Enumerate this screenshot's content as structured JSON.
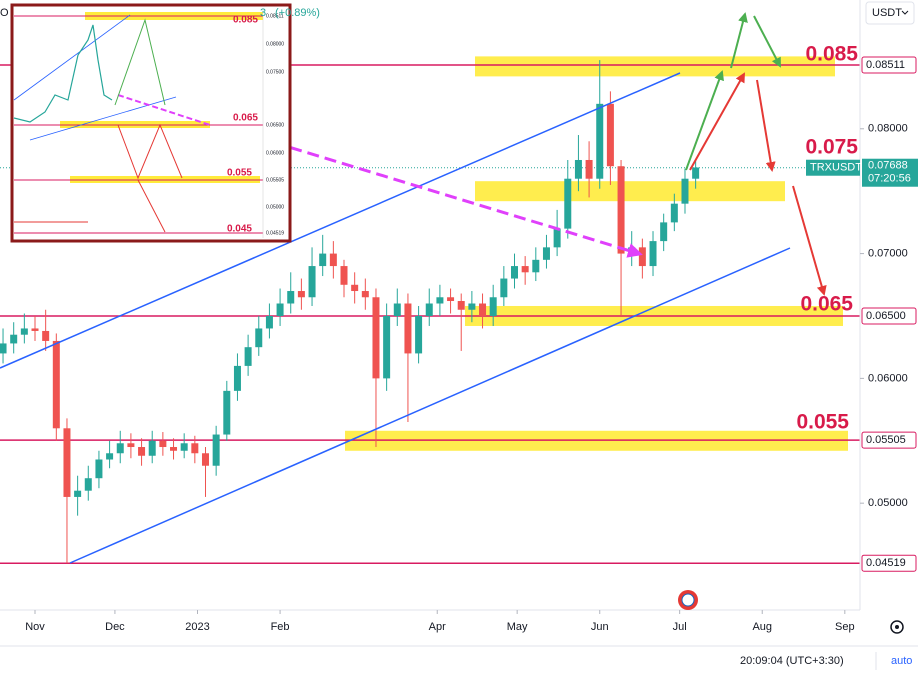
{
  "chart_data": {
    "type": "candlestick",
    "symbol": "TRXUSDT",
    "header_symbol_tail": "O",
    "header_change_tail": "3",
    "header_change": "(+0.89%)",
    "currency": "USDT",
    "x": [
      -12,
      -8,
      -4,
      0,
      4,
      8,
      12,
      16,
      20,
      24,
      28,
      32,
      36,
      40,
      44,
      48,
      52,
      56,
      60,
      64,
      68,
      72,
      76,
      80,
      84,
      88,
      92,
      96,
      100,
      104,
      108,
      112,
      116,
      120,
      124,
      128,
      132,
      136,
      140,
      144,
      148,
      152,
      156,
      160,
      164,
      168,
      172,
      176,
      180,
      184,
      188,
      192,
      196,
      200,
      204,
      208,
      212,
      216,
      220,
      224,
      228,
      232,
      236,
      240,
      244,
      248
    ],
    "open": [
      0.062,
      0.0628,
      0.0635,
      0.064,
      0.0638,
      0.063,
      0.056,
      0.0505,
      0.051,
      0.052,
      0.0535,
      0.054,
      0.0548,
      0.0545,
      0.0538,
      0.055,
      0.0545,
      0.0542,
      0.0548,
      0.054,
      0.053,
      0.0555,
      0.059,
      0.061,
      0.0625,
      0.064,
      0.065,
      0.066,
      0.067,
      0.0665,
      0.069,
      0.07,
      0.069,
      0.0675,
      0.067,
      0.0665,
      0.06,
      0.065,
      0.066,
      0.062,
      0.065,
      0.066,
      0.0665,
      0.0662,
      0.0655,
      0.066,
      0.065,
      0.0665,
      0.068,
      0.069,
      0.0685,
      0.0695,
      0.0705,
      0.072,
      0.076,
      0.0775,
      0.076,
      0.082,
      0.077,
      0.07,
      0.0705,
      0.069,
      0.071,
      0.0725,
      0.074,
      0.076
    ],
    "high": [
      0.064,
      0.0645,
      0.0652,
      0.065,
      0.0655,
      0.0636,
      0.0568,
      0.0522,
      0.053,
      0.0542,
      0.055,
      0.0558,
      0.0556,
      0.0552,
      0.0558,
      0.0557,
      0.0552,
      0.0556,
      0.0554,
      0.0545,
      0.0562,
      0.0598,
      0.062,
      0.0635,
      0.065,
      0.066,
      0.0672,
      0.0685,
      0.068,
      0.0705,
      0.0715,
      0.071,
      0.0695,
      0.0685,
      0.068,
      0.0672,
      0.066,
      0.0672,
      0.0668,
      0.0658,
      0.0672,
      0.0675,
      0.0672,
      0.0668,
      0.067,
      0.0668,
      0.0675,
      0.069,
      0.07,
      0.0698,
      0.0705,
      0.0715,
      0.0735,
      0.0775,
      0.0795,
      0.079,
      0.0855,
      0.083,
      0.0775,
      0.0718,
      0.0712,
      0.0718,
      0.0732,
      0.0748,
      0.0768,
      0.0775
    ],
    "low": [
      0.0612,
      0.062,
      0.0628,
      0.063,
      0.0622,
      0.055,
      0.04519,
      0.049,
      0.0502,
      0.0512,
      0.0528,
      0.0532,
      0.0536,
      0.053,
      0.0532,
      0.0538,
      0.0535,
      0.0536,
      0.0532,
      0.0505,
      0.0522,
      0.055,
      0.0582,
      0.0602,
      0.0618,
      0.0632,
      0.0642,
      0.0652,
      0.0655,
      0.0658,
      0.0682,
      0.068,
      0.0665,
      0.066,
      0.0655,
      0.0545,
      0.059,
      0.0642,
      0.0565,
      0.0612,
      0.0642,
      0.065,
      0.0652,
      0.0622,
      0.0645,
      0.064,
      0.0642,
      0.0658,
      0.0672,
      0.0675,
      0.0678,
      0.0688,
      0.0698,
      0.0712,
      0.075,
      0.0745,
      0.0752,
      0.0755,
      0.065,
      0.069,
      0.068,
      0.0682,
      0.0702,
      0.0718,
      0.0732,
      0.0752
    ],
    "close": [
      0.0628,
      0.0635,
      0.064,
      0.0638,
      0.063,
      0.056,
      0.0505,
      0.051,
      0.052,
      0.0535,
      0.054,
      0.0548,
      0.0545,
      0.0538,
      0.055,
      0.0545,
      0.0542,
      0.0548,
      0.054,
      0.053,
      0.0555,
      0.059,
      0.061,
      0.0625,
      0.064,
      0.065,
      0.066,
      0.067,
      0.0665,
      0.069,
      0.07,
      0.069,
      0.0675,
      0.067,
      0.0665,
      0.06,
      0.065,
      0.066,
      0.062,
      0.065,
      0.066,
      0.0665,
      0.0662,
      0.0655,
      0.066,
      0.065,
      0.0665,
      0.068,
      0.069,
      0.0685,
      0.0695,
      0.0705,
      0.072,
      0.076,
      0.0775,
      0.076,
      0.082,
      0.077,
      0.07,
      0.0705,
      0.069,
      0.071,
      0.0725,
      0.074,
      0.076,
      0.0769
    ],
    "up_color": "#26a69a",
    "down_color": "#ef5350",
    "xlim": [
      -13.14,
      309.7
    ],
    "xticks": [
      {
        "value": 0,
        "label": "Nov"
      },
      {
        "value": 30,
        "label": "Dec"
      },
      {
        "value": 61,
        "label": "2023"
      },
      {
        "value": 92,
        "label": "Feb"
      },
      {
        "value": 151,
        "label": "Apr"
      },
      {
        "value": 181,
        "label": "May"
      },
      {
        "value": 212,
        "label": "Jun"
      },
      {
        "value": 242,
        "label": "Jul"
      },
      {
        "value": 273,
        "label": "Aug"
      },
      {
        "value": 304,
        "label": "Sep"
      }
    ],
    "ylim": [
      0.04144,
      0.09032
    ],
    "yticks": [
      {
        "value": 0.08,
        "label": "0.08000"
      },
      {
        "value": 0.07,
        "label": "0.07000"
      },
      {
        "value": 0.06,
        "label": "0.06000"
      },
      {
        "value": 0.05,
        "label": "0.05000"
      }
    ],
    "levels": [
      {
        "value": 0.08511,
        "label": "0.08511"
      },
      {
        "value": 0.065,
        "label": "0.06500"
      },
      {
        "value": 0.05505,
        "label": "0.05505"
      },
      {
        "value": 0.04519,
        "label": "0.04519"
      }
    ],
    "level_color": "#d81b60",
    "zones": [
      0.085,
      0.075,
      0.065,
      0.055
    ],
    "zone_color": "#ffeb3b",
    "last_price": {
      "value": 0.07688,
      "label": "0.07688",
      "countdown": "07:20:56"
    },
    "time": "20:09:04 (UTC+3:30)",
    "scale_mode": "auto",
    "inset": {
      "zones": [
        "0.085",
        "0.065",
        "0.055",
        "0.045"
      ],
      "prices": [
        "0.08511",
        "0.08000",
        "0.07500",
        "0.06500",
        "0.06000",
        "0.05505",
        "0.05000",
        "0.04519"
      ]
    }
  }
}
